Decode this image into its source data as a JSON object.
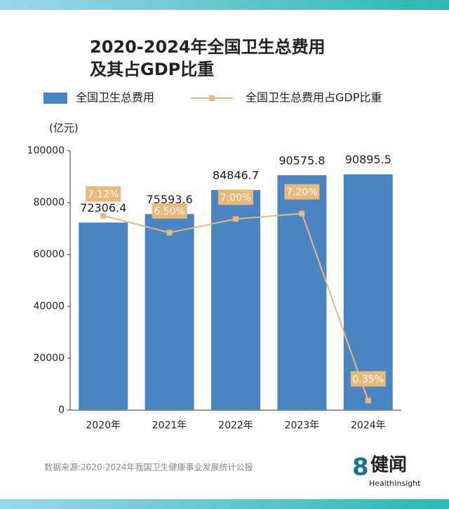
{
  "chart_data": {
    "type": "bar",
    "title": [
      "2020-2024年全国卫生总费用",
      "及其占GDP比重"
    ],
    "y_label": "(亿元)",
    "categories": [
      "2020年",
      "2021年",
      "2022年",
      "2023年",
      "2024年"
    ],
    "series": [
      {
        "name": "全国卫生总费用",
        "type": "bar",
        "color": "#4a84c1",
        "values": [
          72306.4,
          75593.6,
          84846.7,
          90575.8,
          90895.5
        ]
      },
      {
        "name": "全国卫生总费用占GDP比重",
        "type": "line",
        "axis": "y2",
        "color": "#e8b97a",
        "values": [
          7.12,
          6.5,
          7.0,
          7.2,
          0.35
        ],
        "value_labels": [
          "7.12%",
          "6.50%",
          "7.00%",
          "7.20%",
          "0.35%"
        ]
      }
    ],
    "ylim": [
      0,
      100000
    ],
    "yticks": [
      0,
      20000,
      40000,
      60000,
      80000,
      100000
    ],
    "y2lim": [
      0,
      9.5
    ],
    "grid": false,
    "source": "数据来源:2020-2024年我国卫生健康事业发展统计公报",
    "logo": {
      "mark": "8",
      "name": "健闻",
      "sub": "HealthInsight"
    }
  }
}
